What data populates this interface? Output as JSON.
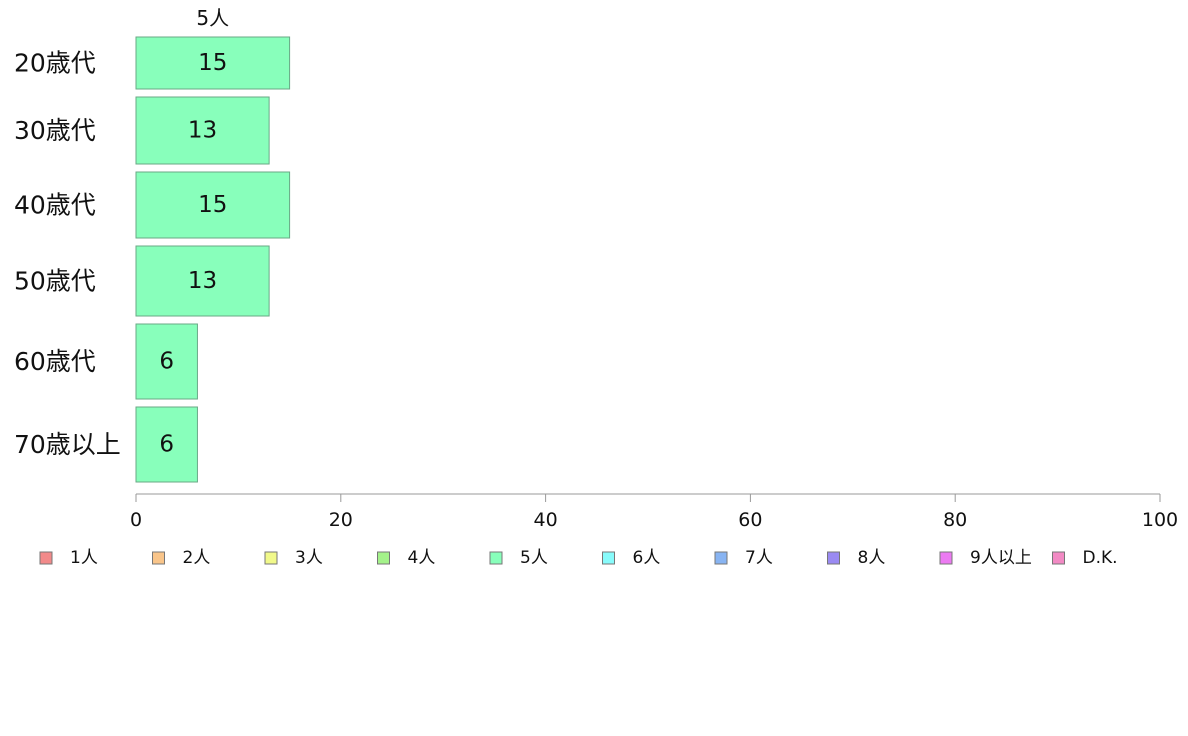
{
  "chart_data": {
    "type": "bar",
    "orientation": "horizontal",
    "stacked": true,
    "categories": [
      "20歳代",
      "30歳代",
      "40歳代",
      "50歳代",
      "60歳代",
      "70歳以上"
    ],
    "series": [
      {
        "name": "5人",
        "color": "#88ffbb",
        "values": [
          15,
          13,
          15,
          13,
          6,
          6
        ]
      }
    ],
    "xlim": [
      0,
      100
    ],
    "xticks": [
      0,
      20,
      40,
      60,
      80,
      100
    ],
    "grid": false,
    "legend_position": "bottom",
    "legend": [
      {
        "label": "1人",
        "color": "#f28a8a"
      },
      {
        "label": "2人",
        "color": "#f9c58a"
      },
      {
        "label": "3人",
        "color": "#f1f98a"
      },
      {
        "label": "4人",
        "color": "#a4f28a"
      },
      {
        "label": "5人",
        "color": "#88ffbb"
      },
      {
        "label": "6人",
        "color": "#88fbfb"
      },
      {
        "label": "7人",
        "color": "#88b4f2"
      },
      {
        "label": "8人",
        "color": "#9a8af2"
      },
      {
        "label": "9人以上",
        "color": "#ec7af2"
      },
      {
        "label": "D.K.",
        "color": "#f28ac4"
      }
    ]
  }
}
